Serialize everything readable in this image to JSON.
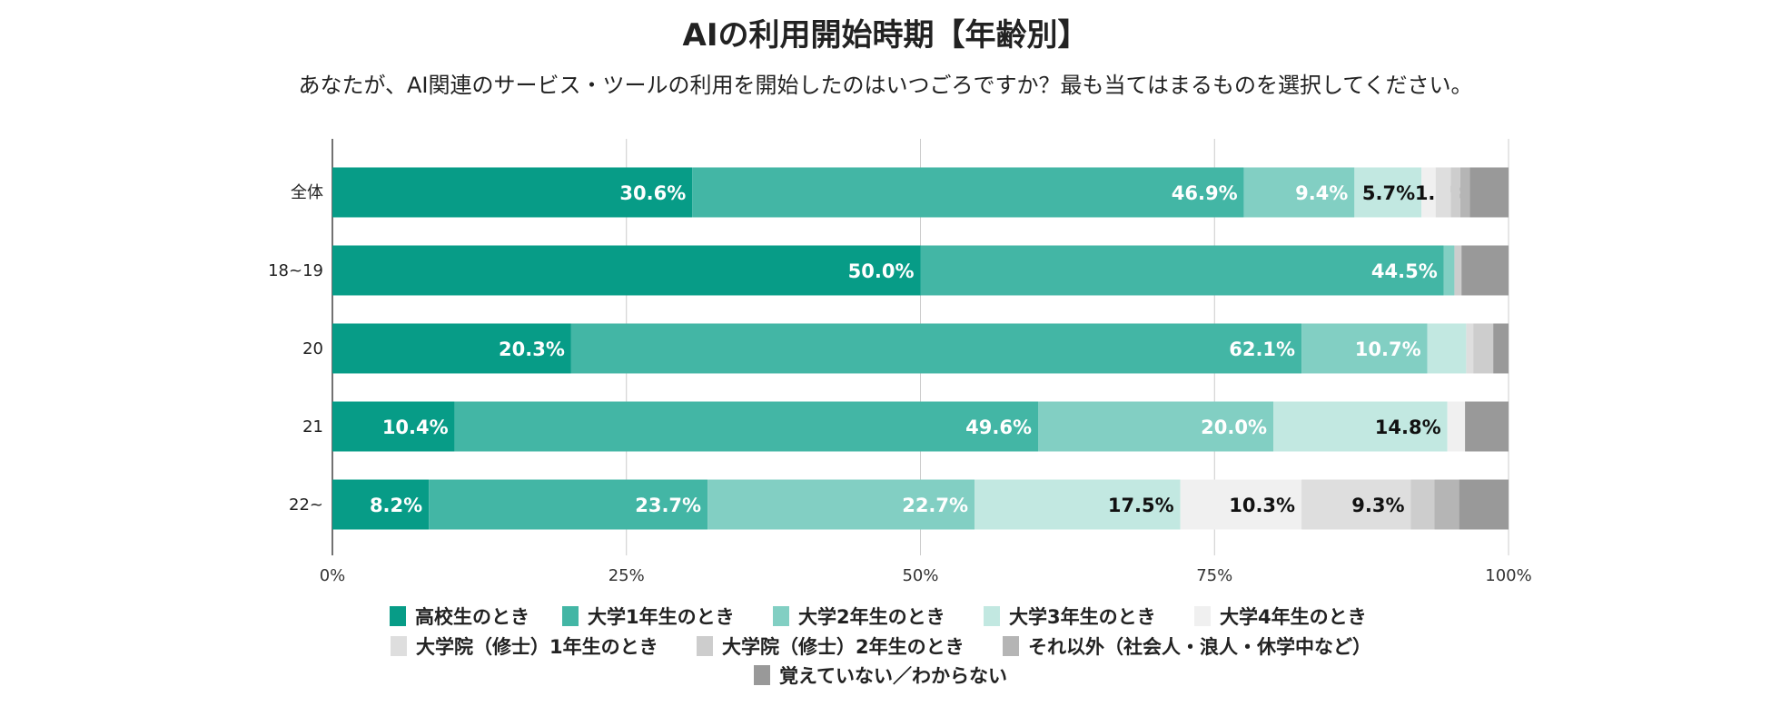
{
  "chart_data": {
    "type": "bar",
    "orientation": "horizontal",
    "stacked": true,
    "title": "AIの利用開始時期【年齢別】",
    "subtitle": "あなたが、AI関連のサービス・ツールの利用を開始したのはいつごろですか？最も当てはまるものを選択してください。",
    "xlabel": "",
    "ylabel": "",
    "xlim": [
      0,
      100
    ],
    "xticks": [
      "0%",
      "25%",
      "50%",
      "75%",
      "100%"
    ],
    "grid": true,
    "legend_position": "bottom",
    "categories": [
      "全体",
      "18~19",
      "20",
      "21",
      "22~"
    ],
    "series": [
      {
        "name": "高校生のとき",
        "color": "#079c87",
        "label_color": "#ffffff",
        "values": [
          30.6,
          50.0,
          20.3,
          10.4,
          8.2
        ],
        "labeled": [
          true,
          true,
          true,
          true,
          true
        ]
      },
      {
        "name": "大学1年生のとき",
        "color": "#43b6a5",
        "label_color": "#ffffff",
        "values": [
          46.9,
          44.5,
          62.1,
          49.6,
          23.7
        ],
        "labeled": [
          true,
          true,
          true,
          true,
          true
        ]
      },
      {
        "name": "大学2年生のとき",
        "color": "#82cfc3",
        "label_color": "#ffffff",
        "values": [
          9.4,
          0.9,
          10.7,
          20.0,
          22.7
        ],
        "labeled": [
          true,
          false,
          true,
          true,
          true
        ]
      },
      {
        "name": "大学3年生のとき",
        "color": "#c2e8e1",
        "label_color": "#111111",
        "values": [
          5.7,
          0,
          3.3,
          14.8,
          17.5
        ],
        "labeled": [
          true,
          false,
          false,
          true,
          true
        ]
      },
      {
        "name": "大学4年生のとき",
        "color": "#f0f0f0",
        "label_color": "#111111",
        "values": [
          1.2,
          0,
          0,
          1.5,
          10.3
        ],
        "labeled": [
          true,
          false,
          false,
          false,
          true
        ]
      },
      {
        "name": "大学院（修士）1年生のとき",
        "color": "#dedede",
        "label_color": "#111111",
        "values": [
          1.3,
          0,
          0.6,
          0,
          9.3
        ],
        "labeled": [
          false,
          false,
          false,
          false,
          true
        ]
      },
      {
        "name": "大学院（修士）2年生のとき",
        "color": "#cdcdcd",
        "label_color": "#111111",
        "values": [
          0.8,
          0.6,
          1.7,
          0,
          2.0
        ],
        "labeled": [
          false,
          false,
          false,
          false,
          false
        ]
      },
      {
        "name": "それ以外（社会人・浪人・休学中など）",
        "color": "#b5b5b5",
        "label_color": "#111111",
        "values": [
          0.8,
          0,
          0,
          0,
          2.1
        ],
        "labeled": [
          false,
          false,
          false,
          false,
          false
        ]
      },
      {
        "name": "覚えていない／わからない",
        "color": "#999999",
        "label_color": "#111111",
        "values": [
          3.3,
          4.0,
          1.3,
          3.7,
          4.2
        ],
        "labeled": [
          false,
          false,
          false,
          false,
          false
        ]
      }
    ]
  }
}
